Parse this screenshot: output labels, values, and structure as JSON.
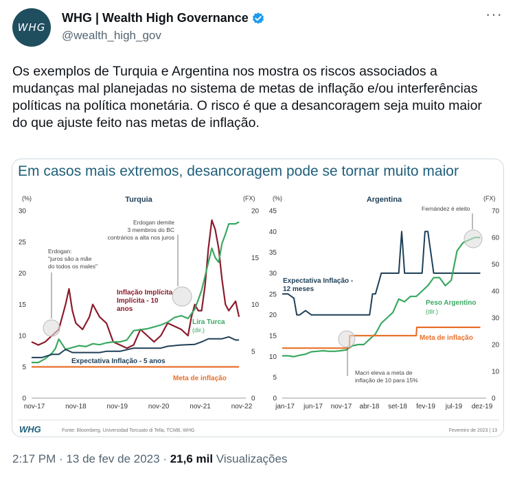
{
  "header": {
    "avatar_text": "WHG",
    "display_name": "WHG | Wealth High Governance",
    "handle": "@wealth_high_gov",
    "more_icon": "ellipsis-icon"
  },
  "tweet_text": "Os exemplos de Turquia e Argentina nos mostra os riscos associados a mudanças mal planejadas no sistema de metas de inflação e/ou interferências políticas na política monetária. O risco é que a desancoragem seja muito maior do que ajuste feito nas metas de inflação.",
  "footer": {
    "time": "2:17 PM",
    "date": "13 de fev de 2023",
    "views_count": "21,6 mil",
    "views_label": "Visualizações",
    "separator": "·"
  },
  "slide": {
    "title": "Em casos mais extremos, desancoragem pode se tornar muito maior",
    "logo": "WHG",
    "source": "Fonte: Bloomberg, Universidad Torcuato di Tella, TCMB, WHG",
    "page": "Fevereiro de 2023 | 13"
  },
  "colors": {
    "brand": "#1f5f7a",
    "inflation_implied": "#8b1a2b",
    "currency": "#3aa860",
    "expectation": "#1d3f57",
    "target": "#e8702a"
  },
  "chart_data": [
    {
      "type": "line",
      "title": "Turquia",
      "left_unit": "(%)",
      "right_unit": "(FX)",
      "ylim_left": [
        0,
        30
      ],
      "ylim_right": [
        0,
        20
      ],
      "yticks_left": [
        "0",
        "5",
        "10",
        "15",
        "20",
        "25",
        "30"
      ],
      "yticks_right": [
        "0",
        "5",
        "10",
        "15",
        "20"
      ],
      "xticks": [
        "nov-17",
        "nov-18",
        "nov-19",
        "nov-20",
        "nov-21",
        "nov-22"
      ],
      "xrange": [
        0,
        63
      ],
      "series": [
        {
          "name": "Inflação Implícita - 10 anos",
          "axis": "left",
          "x": [
            0,
            2,
            4,
            6,
            8,
            10,
            11,
            12,
            13,
            15,
            17,
            18,
            20,
            22,
            24,
            26,
            28,
            30,
            32,
            34,
            36,
            38,
            40,
            42,
            44,
            46,
            47,
            48,
            49,
            50,
            51,
            52,
            53,
            54,
            55,
            56,
            57,
            58,
            60,
            61
          ],
          "values": [
            9,
            8.5,
            9,
            10,
            11,
            15,
            17.5,
            14,
            12,
            11,
            13,
            15,
            13,
            12,
            9,
            8.5,
            8,
            8.5,
            11,
            10,
            9,
            10,
            12,
            11.5,
            11,
            10,
            13,
            15,
            14,
            14,
            18,
            24,
            28.5,
            27,
            24,
            19,
            15,
            14,
            15.5,
            13
          ]
        },
        {
          "name": "Lira Turca",
          "axis": "right",
          "x": [
            0,
            2,
            4,
            6,
            7,
            8,
            10,
            12,
            14,
            16,
            18,
            20,
            22,
            24,
            26,
            28,
            30,
            32,
            34,
            36,
            38,
            40,
            42,
            44,
            46,
            47,
            48,
            49,
            50,
            51,
            52,
            53,
            54,
            55,
            56,
            57,
            58,
            60,
            61
          ],
          "values": [
            3.8,
            3.8,
            4.2,
            4.8,
            5.3,
            6.3,
            5.2,
            5.4,
            5.6,
            5.5,
            5.8,
            5.7,
            5.9,
            6,
            6,
            6.2,
            7.2,
            7.3,
            7.4,
            7.6,
            7.8,
            8.1,
            8.6,
            8.8,
            8.5,
            9,
            9.5,
            10.5,
            11.5,
            13,
            14.5,
            16,
            15,
            14.5,
            16.5,
            17.5,
            18.6,
            18.6,
            18.8
          ]
        },
        {
          "name": "Expectativa Inflação - 5 anos",
          "axis": "left",
          "x": [
            0,
            3,
            6,
            8,
            10,
            12,
            16,
            20,
            22,
            26,
            30,
            34,
            38,
            40,
            44,
            48,
            50,
            52,
            54,
            56,
            58,
            60,
            61
          ],
          "values": [
            6.5,
            6.5,
            7,
            7,
            7.8,
            7.3,
            7.3,
            7.3,
            7.5,
            7.5,
            8,
            8,
            8,
            8.3,
            8.5,
            8.6,
            9,
            9.5,
            9.5,
            9.5,
            9.8,
            9.3,
            9.3
          ]
        },
        {
          "name": "Meta de inflação",
          "axis": "left",
          "x": [
            0,
            61
          ],
          "values": [
            5,
            5
          ]
        }
      ],
      "annotations": [
        "Erdogan demite 3 membros do BC contrários a alta nos juros",
        "Erdogan: \"juros são a mãe do todos os males\""
      ]
    },
    {
      "type": "line",
      "title": "Argentina",
      "left_unit": "(%)",
      "right_unit": "(FX)",
      "ylim_left": [
        0,
        45
      ],
      "ylim_right": [
        0,
        70
      ],
      "yticks_left": [
        "0",
        "5",
        "10",
        "15",
        "20",
        "25",
        "30",
        "35",
        "40",
        "45"
      ],
      "yticks_right": [
        "0",
        "10",
        "20",
        "30",
        "40",
        "50",
        "60",
        "70"
      ],
      "xticks": [
        "jan-17",
        "jun-17",
        "nov-17",
        "abr-18",
        "set-18",
        "fev-19",
        "jul-19",
        "dez-19"
      ],
      "xrange": [
        0,
        35
      ],
      "series": [
        {
          "name": "Expectativa Inflação - 12 meses",
          "axis": "left",
          "x": [
            0,
            1,
            2,
            2.5,
            3,
            4,
            5,
            6,
            8,
            10,
            12,
            14,
            15,
            15.5,
            16,
            17,
            18,
            19,
            20,
            20.5,
            21,
            22,
            23,
            24,
            24.5,
            25,
            26,
            27,
            28,
            29,
            30,
            31,
            32,
            34
          ],
          "values": [
            25,
            25,
            24,
            20,
            20,
            21,
            20,
            20,
            20,
            20,
            20,
            20,
            20,
            25,
            25,
            30,
            30,
            30,
            30,
            40,
            30,
            30,
            30,
            30,
            40,
            40,
            30,
            30,
            30,
            30,
            30,
            30,
            30,
            30
          ]
        },
        {
          "name": "Peso Argentino",
          "axis": "right",
          "x": [
            0,
            1,
            2,
            3,
            4,
            5,
            6,
            7,
            8,
            9,
            10,
            11,
            12,
            13,
            14,
            15,
            16,
            17,
            18,
            19,
            20,
            21,
            22,
            23,
            24,
            25,
            26,
            27,
            28,
            29,
            30,
            31,
            32,
            33,
            34
          ],
          "values": [
            15.8,
            15.8,
            15.5,
            16,
            16.4,
            17.3,
            17.5,
            17.7,
            17.5,
            17.5,
            17.7,
            18,
            19.5,
            20,
            20,
            22,
            24,
            28,
            30,
            32,
            37,
            36,
            38,
            38,
            40,
            42,
            45,
            45,
            42,
            44,
            55,
            58,
            59,
            60,
            60
          ]
        },
        {
          "name": "Meta de inflação",
          "axis": "left",
          "x": [
            0,
            11.5,
            11.6,
            23,
            23.1,
            34
          ],
          "values": [
            12,
            12,
            15,
            15,
            17,
            17
          ]
        }
      ],
      "annotations": [
        "Fernández é eleito",
        "Macri eleva a meta de inflação de 10 para 15%"
      ]
    }
  ]
}
